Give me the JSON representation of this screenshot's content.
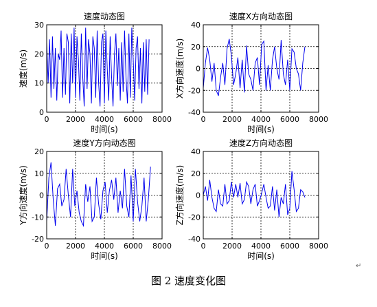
{
  "caption": "图 2  速度变化图",
  "para_mark": "↵",
  "colors": {
    "line": "#0000ee",
    "axes": "#000000",
    "grid": "#000000",
    "background": "#ffffff"
  },
  "chart_data": [
    {
      "type": "line",
      "title": "速度动态图",
      "xlabel": "时间(s)",
      "ylabel": "速度(m/s)",
      "xlim": [
        0,
        8000
      ],
      "ylim": [
        0,
        30
      ],
      "xticks": [
        0,
        2000,
        4000,
        6000,
        8000
      ],
      "yticks": [
        0,
        10,
        20,
        30
      ],
      "grid": true,
      "series": [
        {
          "x": [
            0,
            100,
            200,
            300,
            400,
            500,
            600,
            700,
            800,
            900,
            1000,
            1100,
            1200,
            1300,
            1400,
            1500,
            1600,
            1700,
            1800,
            1900,
            2000,
            2100,
            2200,
            2300,
            2400,
            2500,
            2600,
            2700,
            2800,
            2900,
            3000,
            3100,
            3200,
            3300,
            3400,
            3500,
            3600,
            3700,
            3800,
            3900,
            4000,
            4100,
            4200,
            4300,
            4400,
            4500,
            4600,
            4700,
            4800,
            4900,
            5000,
            5100,
            5200,
            5300,
            5400,
            5500,
            5600,
            5700,
            5800,
            5900,
            6000,
            6100,
            6200,
            6300,
            6400,
            6500,
            6600,
            6700,
            6800,
            6900,
            7000,
            7100
          ],
          "y": [
            24,
            10,
            25,
            5,
            26,
            8,
            22,
            4,
            20,
            18,
            28,
            5,
            22,
            6,
            27,
            24,
            3,
            27,
            10,
            29,
            5,
            26,
            18,
            4,
            27,
            12,
            2,
            29,
            8,
            25,
            20,
            3,
            26,
            22,
            5,
            28,
            10,
            2,
            24,
            27,
            3,
            28,
            15,
            4,
            26,
            12,
            2,
            20,
            27,
            9,
            22,
            4,
            24,
            7,
            28,
            12,
            3,
            27,
            5,
            29,
            18,
            4,
            22,
            26,
            8,
            22,
            3,
            24,
            7,
            25,
            6,
            25
          ]
        }
      ]
    },
    {
      "type": "line",
      "title": "速度X方向动态图",
      "xlabel": "时间(s)",
      "ylabel": "X方向速度(m/s)",
      "xlim": [
        0,
        8000
      ],
      "ylim": [
        -40,
        40
      ],
      "xticks": [
        0,
        2000,
        4000,
        6000,
        8000
      ],
      "yticks": [
        -40,
        -20,
        0,
        20,
        40
      ],
      "grid": true,
      "series": [
        {
          "x": [
            0,
            150,
            300,
            450,
            600,
            750,
            900,
            1050,
            1200,
            1350,
            1500,
            1650,
            1800,
            1950,
            2100,
            2250,
            2400,
            2550,
            2700,
            2850,
            3000,
            3150,
            3300,
            3450,
            3600,
            3750,
            3900,
            4050,
            4200,
            4350,
            4500,
            4650,
            4800,
            4950,
            5100,
            5250,
            5400,
            5550,
            5700,
            5850,
            6000,
            6150,
            6300,
            6450,
            6600,
            6750,
            6900,
            7050
          ],
          "y": [
            -18,
            5,
            19,
            8,
            -12,
            5,
            -20,
            -25,
            -8,
            5,
            -15,
            18,
            27,
            12,
            -15,
            -5,
            10,
            -18,
            8,
            -22,
            21,
            -5,
            -10,
            -20,
            5,
            10,
            -15,
            22,
            25,
            -20,
            3,
            -20,
            8,
            20,
            0,
            -10,
            26,
            -5,
            -15,
            8,
            -20,
            18,
            15,
            0,
            -5,
            -20,
            5,
            20
          ]
        }
      ]
    },
    {
      "type": "line",
      "title": "速度Y方向动态图",
      "xlabel": "时间(s)",
      "ylabel": "Y方向速度(m/s)",
      "xlim": [
        0,
        8000
      ],
      "ylim": [
        -20,
        20
      ],
      "xticks": [
        0,
        2000,
        4000,
        6000,
        8000
      ],
      "yticks": [
        -20,
        -10,
        0,
        10,
        20
      ],
      "grid": true,
      "series": [
        {
          "x": [
            0,
            150,
            300,
            450,
            600,
            750,
            900,
            1050,
            1200,
            1350,
            1500,
            1650,
            1800,
            1950,
            2100,
            2250,
            2400,
            2550,
            2700,
            2850,
            3000,
            3150,
            3300,
            3450,
            3600,
            3750,
            3900,
            4050,
            4200,
            4350,
            4500,
            4650,
            4800,
            4950,
            5100,
            5250,
            5400,
            5550,
            5700,
            5850,
            6000,
            6150,
            6300,
            6450,
            6600,
            6750,
            6900,
            7050,
            7200
          ],
          "y": [
            -12,
            8,
            15,
            -2,
            -14,
            3,
            5,
            -5,
            -2,
            12,
            0,
            -10,
            12,
            -5,
            2,
            -8,
            -12,
            -14,
            5,
            -3,
            4,
            -12,
            -10,
            8,
            -4,
            -11,
            2,
            6,
            -8,
            2,
            7,
            -2,
            8,
            -8,
            2,
            -6,
            12,
            -5,
            -10,
            9,
            -12,
            12,
            -3,
            -12,
            -5,
            8,
            -12,
            -2,
            13
          ]
        }
      ]
    },
    {
      "type": "line",
      "title": "速度Z方向动态图",
      "xlabel": "时间(s)",
      "ylabel": "Z方向速度(m/s)",
      "xlim": [
        0,
        8000
      ],
      "ylim": [
        -40,
        40
      ],
      "xticks": [
        0,
        2000,
        4000,
        6000,
        8000
      ],
      "yticks": [
        -40,
        -20,
        0,
        20,
        40
      ],
      "grid": true,
      "series": [
        {
          "x": [
            0,
            150,
            300,
            450,
            600,
            750,
            900,
            1050,
            1200,
            1350,
            1500,
            1650,
            1800,
            1950,
            2100,
            2250,
            2400,
            2550,
            2700,
            2850,
            3000,
            3150,
            3300,
            3450,
            3600,
            3750,
            3900,
            4050,
            4200,
            4350,
            4500,
            4650,
            4800,
            4950,
            5100,
            5250,
            5400,
            5550,
            5700,
            5850,
            6000,
            6150,
            6300,
            6450,
            6600,
            6750,
            6900,
            7050
          ],
          "y": [
            0,
            8,
            -5,
            14,
            -2,
            -12,
            -15,
            5,
            -8,
            -10,
            10,
            -8,
            -5,
            12,
            -2,
            10,
            -2,
            11,
            -8,
            -4,
            12,
            8,
            -8,
            5,
            10,
            -10,
            -5,
            2,
            10,
            -2,
            -12,
            -10,
            8,
            -14,
            5,
            -20,
            -2,
            -8,
            10,
            -18,
            -12,
            22,
            5,
            -15,
            -12,
            5,
            3,
            -2
          ]
        }
      ]
    }
  ]
}
